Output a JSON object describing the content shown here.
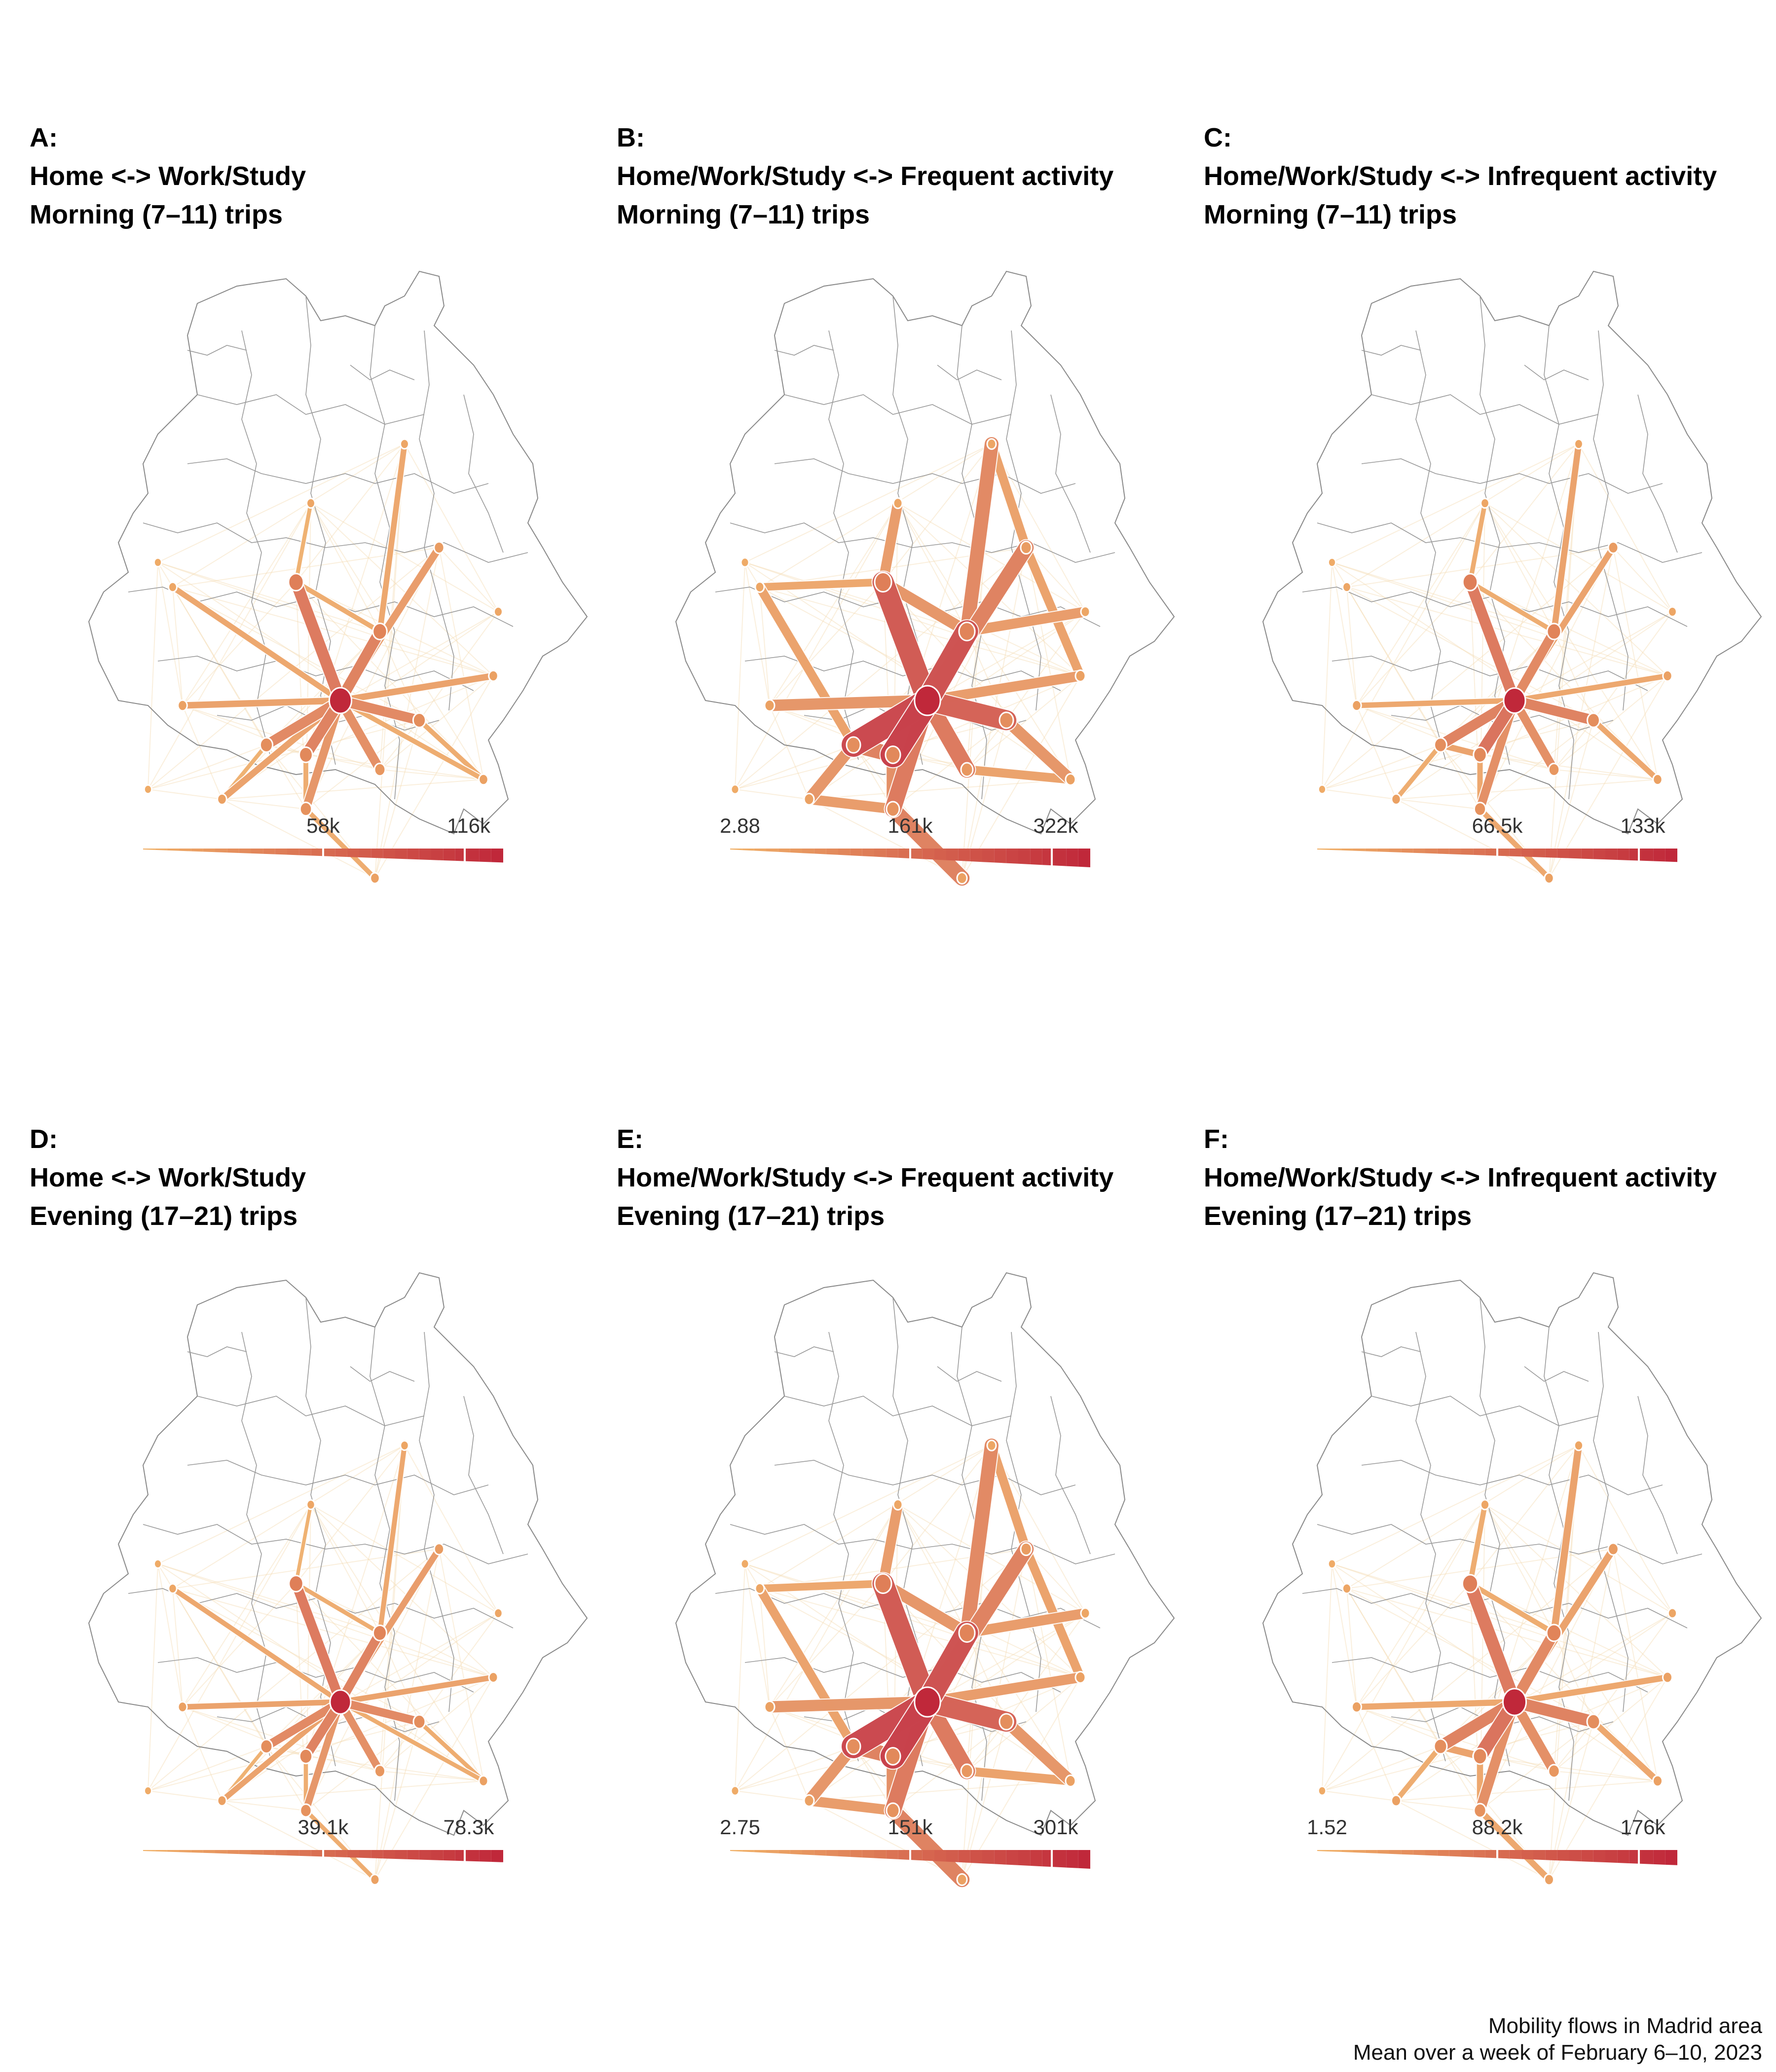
{
  "panels": [
    {
      "id": "A",
      "letter": "A:",
      "line1": "Home <-> Work/Study",
      "line2": "Morning (7–11) trips",
      "legend": [
        "58k",
        "116k"
      ],
      "legend_min": "",
      "scale": 0.85,
      "activity": "work",
      "colors": {
        "hi": "#c0283a",
        "lo": "#f2b56a"
      }
    },
    {
      "id": "B",
      "letter": "B:",
      "line1": "Home/Work/Study <-> Frequent activity",
      "line2": "Morning (7–11) trips",
      "legend": [
        "161k",
        "322k"
      ],
      "legend_min": "2.88",
      "scale": 1.25,
      "activity": "frequent",
      "colors": {
        "hi": "#c0283a",
        "lo": "#f2b56a"
      }
    },
    {
      "id": "C",
      "letter": "C:",
      "line1": "Home/Work/Study <-> Infrequent activity",
      "line2": "Morning (7–11) trips",
      "legend": [
        "66.5k",
        "133k"
      ],
      "legend_min": "",
      "scale": 0.8,
      "activity": "infrequent",
      "colors": {
        "hi": "#c0283a",
        "lo": "#f2b56a"
      }
    },
    {
      "id": "D",
      "letter": "D:",
      "line1": "Home <-> Work/Study",
      "line2": "Evening (17–21) trips",
      "legend": [
        "39.1k",
        "78.3k"
      ],
      "legend_min": "",
      "scale": 0.7,
      "activity": "work",
      "colors": {
        "hi": "#c0283a",
        "lo": "#f2b56a"
      }
    },
    {
      "id": "E",
      "letter": "E:",
      "line1": "Home/Work/Study <-> Frequent activity",
      "line2": "Evening (17–21) trips",
      "legend": [
        "151k",
        "301k"
      ],
      "legend_min": "2.75",
      "scale": 1.25,
      "activity": "frequent",
      "colors": {
        "hi": "#c0283a",
        "lo": "#f2b56a"
      }
    },
    {
      "id": "F",
      "letter": "F:",
      "line1": "Home/Work/Study <-> Infrequent activity",
      "line2": "Evening (17–21) trips",
      "legend": [
        "88.2k",
        "176k"
      ],
      "legend_min": "1.52",
      "scale": 0.95,
      "activity": "infrequent",
      "colors": {
        "hi": "#c0283a",
        "lo": "#f2b56a"
      }
    }
  ],
  "footer": {
    "line1": "Mobility flows in Madrid area",
    "line2": "Mean over a week of February 6–10, 2023"
  }
}
